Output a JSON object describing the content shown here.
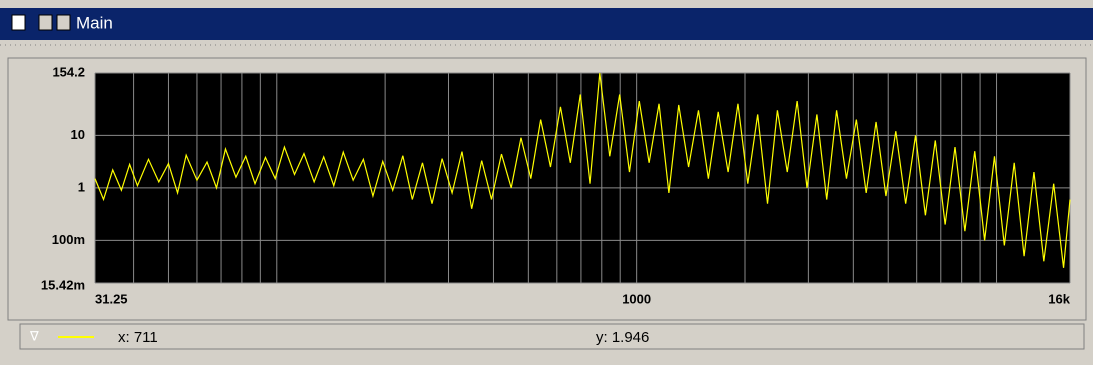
{
  "window": {
    "title": "Main"
  },
  "status": {
    "x": "x: 711",
    "y": "y: 1.946"
  },
  "chart_data": {
    "type": "line",
    "log_x": true,
    "log_y": true,
    "grid": true,
    "background": "#000000",
    "xlim": [
      31.25,
      16000
    ],
    "xticks": [
      31.25,
      1000,
      {
        "value": 16000,
        "label": "16k"
      }
    ],
    "x_minor_ticks": [
      40,
      50,
      60,
      70,
      80,
      90,
      100,
      200,
      300,
      400,
      500,
      600,
      700,
      800,
      900,
      2000,
      3000,
      4000,
      5000,
      6000,
      7000,
      8000,
      9000,
      10000
    ],
    "ylim": [
      0.01542,
      154.2
    ],
    "yticks": [
      {
        "value": 0.01542,
        "label": "15.42m"
      },
      {
        "value": 0.1,
        "label": "100m"
      },
      1,
      10,
      154.2
    ],
    "x": [
      31.25,
      33,
      35,
      37,
      39,
      41,
      44,
      47,
      50,
      53,
      56,
      60,
      64,
      68,
      72,
      77,
      82,
      87,
      93,
      99,
      105,
      112,
      119,
      127,
      135,
      144,
      153,
      163,
      174,
      185,
      197,
      210,
      224,
      238,
      254,
      270,
      288,
      307,
      327,
      348,
      371,
      395,
      421,
      448,
      477,
      508,
      541,
      576,
      614,
      654,
      697,
      742,
      790,
      842,
      897,
      955,
      1017,
      1083,
      1154,
      1229,
      1309,
      1394,
      1485,
      1582,
      1685,
      1795,
      1912,
      2036,
      2169,
      2310,
      2461,
      2621,
      2792,
      2974,
      3168,
      3374,
      3594,
      3828,
      4078,
      4343,
      4626,
      4928,
      5249,
      5591,
      5955,
      6343,
      6757,
      7197,
      7666,
      8166,
      8698,
      9265,
      9869,
      10512,
      11197,
      11927,
      12704,
      13532,
      14414,
      15354,
      16000
    ],
    "series": [
      {
        "color": "#ffff00",
        "values": [
          1.5,
          0.6,
          2.2,
          0.9,
          2.8,
          1.1,
          3.5,
          1.3,
          2.9,
          0.8,
          4.2,
          1.4,
          3.1,
          1.0,
          5.5,
          1.6,
          4.0,
          1.2,
          3.8,
          1.5,
          6.0,
          1.8,
          4.5,
          1.3,
          3.9,
          1.1,
          4.8,
          1.4,
          3.5,
          0.7,
          3.2,
          0.9,
          4.1,
          0.6,
          3.0,
          0.5,
          3.6,
          0.8,
          4.9,
          0.4,
          3.3,
          0.6,
          4.4,
          1.0,
          9.0,
          1.5,
          20,
          2.5,
          35,
          3.0,
          60,
          1.2,
          154,
          4.0,
          60,
          2.0,
          45,
          3.0,
          40,
          0.8,
          38,
          2.5,
          30,
          1.5,
          28,
          2.0,
          40,
          1.2,
          25,
          0.5,
          30,
          2.0,
          45,
          1.0,
          25,
          0.6,
          30,
          1.5,
          20,
          0.8,
          18,
          0.7,
          12,
          0.5,
          10,
          0.3,
          8,
          0.2,
          6,
          0.15,
          5,
          0.1,
          4,
          0.08,
          3,
          0.05,
          2,
          0.04,
          1.2,
          0.03,
          0.6
        ]
      }
    ]
  }
}
